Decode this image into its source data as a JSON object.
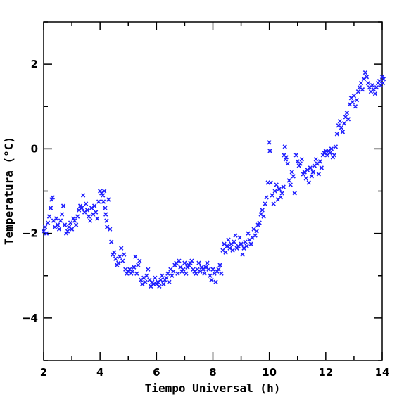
{
  "chart_data": {
    "type": "scatter",
    "title": "",
    "xlabel": "Tiempo Universal (h)",
    "ylabel": "Temperatura (°C)",
    "xlim": [
      2,
      14
    ],
    "ylim": [
      -5,
      3
    ],
    "xticks": [
      2,
      4,
      6,
      8,
      10,
      12,
      14
    ],
    "xtick_labels": [
      "2",
      "4",
      "6",
      "8",
      "10",
      "12",
      "14"
    ],
    "yticks": [
      -4,
      -2,
      0,
      2
    ],
    "ytick_labels": [
      "−4",
      "−2",
      "0",
      "2"
    ],
    "marker": "x",
    "color": "#1f1fff",
    "grid": false,
    "series": [
      {
        "points": [
          [
            2.0,
            -1.95
          ],
          [
            2.05,
            -1.85
          ],
          [
            2.1,
            -2.0
          ],
          [
            2.15,
            -1.75
          ],
          [
            2.2,
            -1.6
          ],
          [
            2.25,
            -1.4
          ],
          [
            2.28,
            -1.2
          ],
          [
            2.32,
            -1.15
          ],
          [
            2.35,
            -1.7
          ],
          [
            2.4,
            -1.85
          ],
          [
            2.45,
            -1.65
          ],
          [
            2.5,
            -1.8
          ],
          [
            2.55,
            -1.9
          ],
          [
            2.6,
            -1.7
          ],
          [
            2.65,
            -1.55
          ],
          [
            2.7,
            -1.35
          ],
          [
            2.75,
            -1.8
          ],
          [
            2.8,
            -2.0
          ],
          [
            2.85,
            -1.95
          ],
          [
            2.9,
            -1.85
          ],
          [
            2.95,
            -1.75
          ],
          [
            3.0,
            -1.9
          ],
          [
            3.05,
            -1.65
          ],
          [
            3.1,
            -1.7
          ],
          [
            3.15,
            -1.8
          ],
          [
            3.2,
            -1.6
          ],
          [
            3.25,
            -1.45
          ],
          [
            3.3,
            -1.35
          ],
          [
            3.35,
            -1.4
          ],
          [
            3.4,
            -1.1
          ],
          [
            3.45,
            -1.5
          ],
          [
            3.5,
            -1.3
          ],
          [
            3.55,
            -1.45
          ],
          [
            3.6,
            -1.6
          ],
          [
            3.65,
            -1.7
          ],
          [
            3.7,
            -1.4
          ],
          [
            3.75,
            -1.55
          ],
          [
            3.8,
            -1.35
          ],
          [
            3.85,
            -1.5
          ],
          [
            3.9,
            -1.65
          ],
          [
            3.95,
            -1.25
          ],
          [
            4.0,
            -1.0
          ],
          [
            4.05,
            -1.05
          ],
          [
            4.1,
            -1.1
          ],
          [
            4.12,
            -1.25
          ],
          [
            4.15,
            -1.0
          ],
          [
            4.18,
            -1.4
          ],
          [
            4.2,
            -1.55
          ],
          [
            4.23,
            -1.7
          ],
          [
            4.25,
            -1.85
          ],
          [
            4.3,
            -1.2
          ],
          [
            4.35,
            -1.9
          ],
          [
            4.4,
            -2.2
          ],
          [
            4.45,
            -2.5
          ],
          [
            4.5,
            -2.45
          ],
          [
            4.55,
            -2.6
          ],
          [
            4.6,
            -2.75
          ],
          [
            4.65,
            -2.7
          ],
          [
            4.7,
            -2.55
          ],
          [
            4.75,
            -2.35
          ],
          [
            4.8,
            -2.65
          ],
          [
            4.85,
            -2.5
          ],
          [
            4.9,
            -2.85
          ],
          [
            4.95,
            -2.95
          ],
          [
            5.0,
            -2.9
          ],
          [
            5.05,
            -2.85
          ],
          [
            5.1,
            -2.95
          ],
          [
            5.15,
            -2.9
          ],
          [
            5.2,
            -2.8
          ],
          [
            5.25,
            -2.55
          ],
          [
            5.3,
            -2.95
          ],
          [
            5.35,
            -2.75
          ],
          [
            5.4,
            -2.65
          ],
          [
            5.45,
            -3.1
          ],
          [
            5.5,
            -3.2
          ],
          [
            5.55,
            -3.05
          ],
          [
            5.6,
            -3.15
          ],
          [
            5.65,
            -3.0
          ],
          [
            5.7,
            -2.85
          ],
          [
            5.75,
            -3.1
          ],
          [
            5.8,
            -3.25
          ],
          [
            5.85,
            -3.15
          ],
          [
            5.9,
            -3.2
          ],
          [
            5.95,
            -3.05
          ],
          [
            6.0,
            -3.2
          ],
          [
            6.05,
            -3.15
          ],
          [
            6.1,
            -3.25
          ],
          [
            6.15,
            -3.1
          ],
          [
            6.2,
            -3.0
          ],
          [
            6.25,
            -3.2
          ],
          [
            6.3,
            -3.1
          ],
          [
            6.35,
            -3.05
          ],
          [
            6.4,
            -2.95
          ],
          [
            6.45,
            -3.15
          ],
          [
            6.5,
            -2.85
          ],
          [
            6.55,
            -3.0
          ],
          [
            6.6,
            -2.9
          ],
          [
            6.65,
            -2.75
          ],
          [
            6.7,
            -2.7
          ],
          [
            6.75,
            -2.95
          ],
          [
            6.8,
            -2.65
          ],
          [
            6.85,
            -2.8
          ],
          [
            6.9,
            -2.9
          ],
          [
            6.95,
            -2.85
          ],
          [
            7.0,
            -2.7
          ],
          [
            7.05,
            -2.95
          ],
          [
            7.1,
            -2.8
          ],
          [
            7.15,
            -2.75
          ],
          [
            7.2,
            -2.7
          ],
          [
            7.25,
            -2.65
          ],
          [
            7.3,
            -2.85
          ],
          [
            7.35,
            -2.9
          ],
          [
            7.4,
            -2.95
          ],
          [
            7.45,
            -2.85
          ],
          [
            7.5,
            -2.7
          ],
          [
            7.55,
            -2.9
          ],
          [
            7.6,
            -2.8
          ],
          [
            7.65,
            -2.85
          ],
          [
            7.7,
            -2.95
          ],
          [
            7.75,
            -2.8
          ],
          [
            7.8,
            -2.7
          ],
          [
            7.85,
            -2.85
          ],
          [
            7.9,
            -3.0
          ],
          [
            7.95,
            -3.1
          ],
          [
            8.0,
            -2.85
          ],
          [
            8.05,
            -2.95
          ],
          [
            8.1,
            -3.15
          ],
          [
            8.15,
            -2.9
          ],
          [
            8.2,
            -2.85
          ],
          [
            8.25,
            -2.75
          ],
          [
            8.3,
            -2.95
          ],
          [
            8.35,
            -2.4
          ],
          [
            8.4,
            -2.25
          ],
          [
            8.45,
            -2.45
          ],
          [
            8.5,
            -2.3
          ],
          [
            8.55,
            -2.15
          ],
          [
            8.6,
            -2.35
          ],
          [
            8.65,
            -2.25
          ],
          [
            8.7,
            -2.4
          ],
          [
            8.75,
            -2.2
          ],
          [
            8.8,
            -2.05
          ],
          [
            8.85,
            -2.35
          ],
          [
            8.9,
            -2.3
          ],
          [
            8.95,
            -2.1
          ],
          [
            9.0,
            -2.25
          ],
          [
            9.05,
            -2.5
          ],
          [
            9.1,
            -2.35
          ],
          [
            9.15,
            -2.2
          ],
          [
            9.2,
            -2.3
          ],
          [
            9.25,
            -2.0
          ],
          [
            9.3,
            -2.15
          ],
          [
            9.35,
            -2.25
          ],
          [
            9.4,
            -2.1
          ],
          [
            9.45,
            -1.9
          ],
          [
            9.5,
            -2.05
          ],
          [
            9.55,
            -1.95
          ],
          [
            9.6,
            -1.8
          ],
          [
            9.65,
            -1.75
          ],
          [
            9.7,
            -1.55
          ],
          [
            9.75,
            -1.45
          ],
          [
            9.8,
            -1.6
          ],
          [
            9.85,
            -1.3
          ],
          [
            9.9,
            -1.15
          ],
          [
            9.95,
            -0.8
          ],
          [
            10.0,
            0.15
          ],
          [
            10.02,
            -0.05
          ],
          [
            10.05,
            -0.8
          ],
          [
            10.1,
            -1.1
          ],
          [
            10.15,
            -1.3
          ],
          [
            10.2,
            -1.0
          ],
          [
            10.25,
            -0.85
          ],
          [
            10.3,
            -1.2
          ],
          [
            10.35,
            -0.95
          ],
          [
            10.4,
            -1.15
          ],
          [
            10.45,
            -1.05
          ],
          [
            10.5,
            -0.9
          ],
          [
            10.52,
            -0.15
          ],
          [
            10.55,
            0.05
          ],
          [
            10.58,
            -0.25
          ],
          [
            10.6,
            -0.2
          ],
          [
            10.65,
            -0.35
          ],
          [
            10.7,
            -0.75
          ],
          [
            10.75,
            -0.85
          ],
          [
            10.8,
            -0.55
          ],
          [
            10.85,
            -0.65
          ],
          [
            10.9,
            -1.05
          ],
          [
            10.95,
            -0.15
          ],
          [
            11.0,
            -0.3
          ],
          [
            11.05,
            -0.4
          ],
          [
            11.1,
            -0.35
          ],
          [
            11.15,
            -0.25
          ],
          [
            11.2,
            -0.6
          ],
          [
            11.25,
            -0.55
          ],
          [
            11.3,
            -0.7
          ],
          [
            11.35,
            -0.5
          ],
          [
            11.4,
            -0.8
          ],
          [
            11.45,
            -0.45
          ],
          [
            11.5,
            -0.65
          ],
          [
            11.55,
            -0.55
          ],
          [
            11.6,
            -0.4
          ],
          [
            11.65,
            -0.25
          ],
          [
            11.7,
            -0.35
          ],
          [
            11.75,
            -0.6
          ],
          [
            11.8,
            -0.3
          ],
          [
            11.85,
            -0.45
          ],
          [
            11.9,
            -0.15
          ],
          [
            11.95,
            -0.1
          ],
          [
            12.0,
            -0.05
          ],
          [
            12.05,
            -0.15
          ],
          [
            12.1,
            -0.05
          ],
          [
            12.15,
            -0.1
          ],
          [
            12.2,
            0.0
          ],
          [
            12.25,
            -0.2
          ],
          [
            12.3,
            -0.15
          ],
          [
            12.35,
            0.05
          ],
          [
            12.4,
            0.35
          ],
          [
            12.45,
            0.55
          ],
          [
            12.5,
            0.65
          ],
          [
            12.55,
            0.5
          ],
          [
            12.6,
            0.4
          ],
          [
            12.65,
            0.6
          ],
          [
            12.7,
            0.75
          ],
          [
            12.75,
            0.85
          ],
          [
            12.8,
            0.7
          ],
          [
            12.85,
            1.05
          ],
          [
            12.9,
            1.2
          ],
          [
            12.95,
            1.1
          ],
          [
            13.0,
            1.25
          ],
          [
            13.05,
            1.0
          ],
          [
            13.1,
            1.15
          ],
          [
            13.15,
            1.35
          ],
          [
            13.2,
            1.45
          ],
          [
            13.25,
            1.55
          ],
          [
            13.3,
            1.4
          ],
          [
            13.35,
            1.65
          ],
          [
            13.4,
            1.8
          ],
          [
            13.45,
            1.7
          ],
          [
            13.5,
            1.55
          ],
          [
            13.55,
            1.45
          ],
          [
            13.6,
            1.35
          ],
          [
            13.65,
            1.5
          ],
          [
            13.7,
            1.4
          ],
          [
            13.75,
            1.3
          ],
          [
            13.8,
            1.45
          ],
          [
            13.85,
            1.55
          ],
          [
            13.9,
            1.6
          ],
          [
            13.95,
            1.5
          ],
          [
            14.0,
            1.7
          ],
          [
            14.02,
            1.55
          ],
          [
            14.05,
            1.65
          ]
        ]
      }
    ]
  }
}
